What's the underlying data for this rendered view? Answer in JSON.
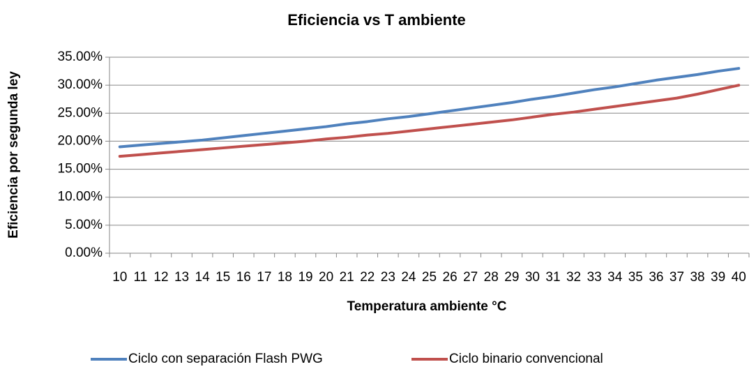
{
  "chart_data": {
    "type": "line",
    "title": "Eficiencia  vs  T ambiente",
    "xlabel": "Temperatura ambiente °C",
    "ylabel": "Eficiencia por segunda ley",
    "categories": [
      10,
      11,
      12,
      13,
      14,
      15,
      16,
      17,
      18,
      19,
      20,
      21,
      22,
      23,
      24,
      25,
      26,
      27,
      28,
      29,
      30,
      31,
      32,
      33,
      34,
      35,
      36,
      37,
      38,
      39,
      40
    ],
    "series": [
      {
        "name": "Ciclo con separación Flash PWG",
        "color": "#4f81bd",
        "values": [
          19.0,
          19.3,
          19.6,
          19.9,
          20.2,
          20.6,
          21.0,
          21.4,
          21.8,
          22.2,
          22.6,
          23.1,
          23.5,
          24.0,
          24.4,
          24.9,
          25.4,
          25.9,
          26.4,
          26.9,
          27.5,
          28.0,
          28.6,
          29.2,
          29.7,
          30.3,
          30.9,
          31.4,
          31.9,
          32.5,
          33.0
        ]
      },
      {
        "name": "Ciclo binario convencional",
        "color": "#c0504d",
        "values": [
          17.3,
          17.6,
          17.9,
          18.2,
          18.5,
          18.8,
          19.1,
          19.4,
          19.7,
          20.0,
          20.4,
          20.7,
          21.1,
          21.4,
          21.8,
          22.2,
          22.6,
          23.0,
          23.4,
          23.8,
          24.3,
          24.8,
          25.2,
          25.7,
          26.2,
          26.7,
          27.2,
          27.7,
          28.4,
          29.2,
          30.0
        ]
      }
    ],
    "ylim": [
      0,
      35
    ],
    "yticks": [
      {
        "value": 0,
        "label": "0.00%"
      },
      {
        "value": 5,
        "label": "5.00%"
      },
      {
        "value": 10,
        "label": "10.00%"
      },
      {
        "value": 15,
        "label": "15.00%"
      },
      {
        "value": 20,
        "label": "20.00%"
      },
      {
        "value": 25,
        "label": "25.00%"
      },
      {
        "value": 30,
        "label": "30.00%"
      },
      {
        "value": 35,
        "label": "35.00%"
      }
    ],
    "grid": true,
    "legend": "bottom"
  }
}
